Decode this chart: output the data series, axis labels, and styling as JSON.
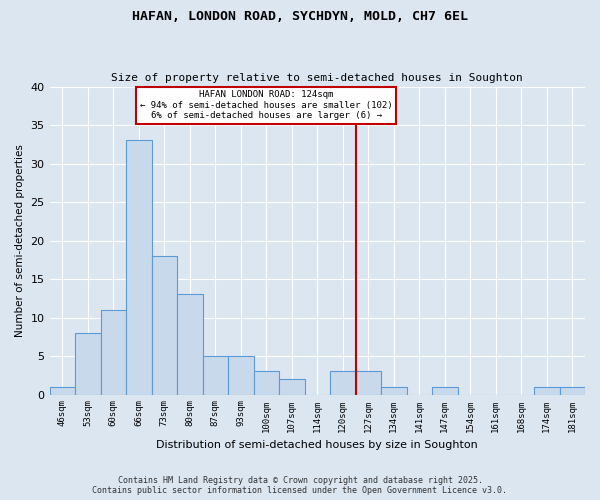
{
  "title1": "HAFAN, LONDON ROAD, SYCHDYN, MOLD, CH7 6EL",
  "title2": "Size of property relative to semi-detached houses in Soughton",
  "xlabel": "Distribution of semi-detached houses by size in Soughton",
  "ylabel": "Number of semi-detached properties",
  "categories": [
    "46sqm",
    "53sqm",
    "60sqm",
    "66sqm",
    "73sqm",
    "80sqm",
    "87sqm",
    "93sqm",
    "100sqm",
    "107sqm",
    "114sqm",
    "120sqm",
    "127sqm",
    "134sqm",
    "141sqm",
    "147sqm",
    "154sqm",
    "161sqm",
    "168sqm",
    "174sqm",
    "181sqm"
  ],
  "values": [
    1,
    8,
    11,
    33,
    18,
    13,
    5,
    5,
    3,
    2,
    0,
    3,
    3,
    1,
    0,
    1,
    0,
    0,
    0,
    1,
    1
  ],
  "bar_color": "#c9d9ec",
  "bar_edge_color": "#5b9bd5",
  "background_color": "#dce6f1",
  "grid_color": "#ffffff",
  "vline_x": 11.5,
  "vline_color": "#c00000",
  "annotation_title": "HAFAN LONDON ROAD: 124sqm",
  "annotation_line1": "← 94% of semi-detached houses are smaller (102)",
  "annotation_line2": "6% of semi-detached houses are larger (6) →",
  "annotation_box_color": "#ffffff",
  "annotation_box_edge": "#c00000",
  "footer1": "Contains HM Land Registry data © Crown copyright and database right 2025.",
  "footer2": "Contains public sector information licensed under the Open Government Licence v3.0.",
  "ylim": [
    0,
    40
  ],
  "yticks": [
    0,
    5,
    10,
    15,
    20,
    25,
    30,
    35,
    40
  ]
}
